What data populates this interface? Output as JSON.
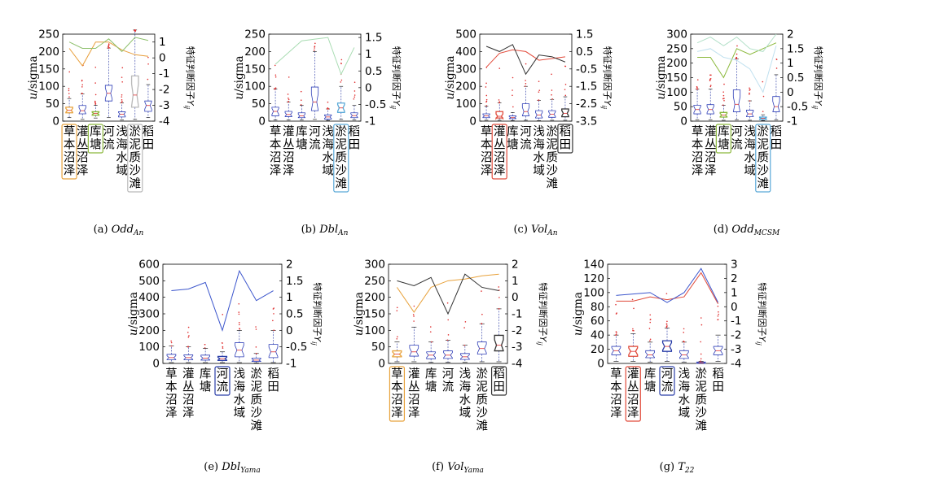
{
  "categories": [
    "草本沼泽",
    "灌丛沼泽",
    "库塘",
    "河流",
    "浅海水域",
    "淤泥质沙滩",
    "稻田"
  ],
  "ylabel": "u/sigma",
  "y2label": "特征判断因子Y_ij",
  "chart_data": [
    {
      "type": "box",
      "caption": "(a) Odd_An",
      "ylim": [
        0,
        250
      ],
      "yticks": [
        0,
        50,
        100,
        150,
        200,
        250
      ],
      "y2lim": [
        -4,
        1.5
      ],
      "y2ticks": [
        -4,
        -3,
        -2,
        -1,
        0,
        1
      ],
      "boxes": [
        {
          "q1": 24,
          "med": 31,
          "q3": 40,
          "lo": 10,
          "hi": 65
        },
        {
          "q1": 21,
          "med": 30,
          "q3": 45,
          "lo": 5,
          "hi": 78
        },
        {
          "q1": 17,
          "med": 22,
          "q3": 27,
          "lo": 9,
          "hi": 46
        },
        {
          "q1": 58,
          "med": 80,
          "q3": 103,
          "lo": 10,
          "hi": 210
        },
        {
          "q1": 12,
          "med": 20,
          "q3": 27,
          "lo": 3,
          "hi": 52
        },
        {
          "q1": 40,
          "med": 75,
          "q3": 130,
          "lo": 5,
          "hi": 262
        },
        {
          "q1": 28,
          "med": 45,
          "q3": 58,
          "lo": 10,
          "hi": 105
        }
      ],
      "highlights": [
        {
          "index": 0,
          "color": "#e8a23c"
        },
        {
          "index": 2,
          "color": "#8ab83a"
        },
        {
          "index": 5,
          "color": "#b9b9b9"
        }
      ],
      "series": [
        {
          "color": "#e89e3a",
          "values": [
            0.6,
            -0.5,
            1.0,
            1.0,
            0.5,
            0.2,
            0.1
          ]
        },
        {
          "color": "#8ec06c",
          "values": [
            1.0,
            0.6,
            0.6,
            1.2,
            0.4,
            1.3,
            1.1
          ]
        }
      ]
    },
    {
      "type": "box",
      "caption": "(b) Dbl_An",
      "ylim": [
        0,
        250
      ],
      "yticks": [
        0,
        50,
        100,
        150,
        200,
        250
      ],
      "y2lim": [
        -1.0,
        1.6
      ],
      "y2ticks": [
        -1.0,
        -0.5,
        0,
        0.5,
        1.0,
        1.5
      ],
      "boxes": [
        {
          "q1": 15,
          "med": 28,
          "q3": 40,
          "lo": 3,
          "hi": 92
        },
        {
          "q1": 13,
          "med": 19,
          "q3": 28,
          "lo": 3,
          "hi": 55
        },
        {
          "q1": 10,
          "med": 15,
          "q3": 24,
          "lo": 3,
          "hi": 45
        },
        {
          "q1": 30,
          "med": 55,
          "q3": 98,
          "lo": 5,
          "hi": 200
        },
        {
          "q1": 6,
          "med": 12,
          "q3": 18,
          "lo": 2,
          "hi": 35
        },
        {
          "q1": 25,
          "med": 38,
          "q3": 52,
          "lo": 5,
          "hi": 100
        },
        {
          "q1": 10,
          "med": 16,
          "q3": 24,
          "lo": 3,
          "hi": 45
        }
      ],
      "highlights": [
        {
          "index": 5,
          "color": "#5aa9d8"
        }
      ],
      "series": [
        {
          "color": "#a8dcb2",
          "values": [
            0.7,
            1.05,
            1.4,
            1.45,
            1.5,
            0.4,
            1.2
          ]
        }
      ]
    },
    {
      "type": "box",
      "caption": "(c) Vol_An",
      "ylim": [
        0,
        500
      ],
      "yticks": [
        0,
        100,
        200,
        300,
        400,
        500
      ],
      "y2lim": [
        -3.5,
        1.5
      ],
      "y2ticks": [
        -3.5,
        -2.5,
        -1.5,
        -0.5,
        0.5,
        1.5
      ],
      "boxes": [
        {
          "q1": 20,
          "med": 30,
          "q3": 42,
          "lo": 5,
          "hi": 85
        },
        {
          "q1": 18,
          "med": 28,
          "q3": 55,
          "lo": 5,
          "hi": 105
        },
        {
          "q1": 14,
          "med": 20,
          "q3": 30,
          "lo": 3,
          "hi": 50
        },
        {
          "q1": 30,
          "med": 55,
          "q3": 100,
          "lo": 5,
          "hi": 200
        },
        {
          "q1": 18,
          "med": 35,
          "q3": 60,
          "lo": 3,
          "hi": 120
        },
        {
          "q1": 22,
          "med": 40,
          "q3": 60,
          "lo": 5,
          "hi": 125
        },
        {
          "q1": 25,
          "med": 45,
          "q3": 70,
          "lo": 5,
          "hi": 140
        }
      ],
      "highlights": [
        {
          "index": 1,
          "color": "#e04a3a"
        },
        {
          "index": 6,
          "color": "#333333"
        }
      ],
      "series": [
        {
          "color": "#e24a3a",
          "values": [
            -0.4,
            0.4,
            0.6,
            0.5,
            0.0,
            0.1,
            0.2
          ]
        },
        {
          "color": "#333333",
          "values": [
            0.8,
            0.5,
            0.9,
            -0.8,
            0.3,
            0.2,
            -0.1
          ]
        }
      ]
    },
    {
      "type": "box",
      "caption": "(d) Odd_MCSM",
      "ylim": [
        0,
        300
      ],
      "yticks": [
        0,
        50,
        100,
        150,
        200,
        250,
        300
      ],
      "y2lim": [
        -1.0,
        2.0
      ],
      "y2ticks": [
        -1.0,
        -0.5,
        0,
        0.5,
        1.0,
        1.5,
        2.0
      ],
      "boxes": [
        {
          "q1": 25,
          "med": 40,
          "q3": 55,
          "lo": 5,
          "hi": 110
        },
        {
          "q1": 25,
          "med": 40,
          "q3": 57,
          "lo": 5,
          "hi": 110
        },
        {
          "q1": 14,
          "med": 21,
          "q3": 30,
          "lo": 3,
          "hi": 55
        },
        {
          "q1": 32,
          "med": 58,
          "q3": 108,
          "lo": 5,
          "hi": 215
        },
        {
          "q1": 15,
          "med": 25,
          "q3": 38,
          "lo": 3,
          "hi": 70
        },
        {
          "q1": 6,
          "med": 10,
          "q3": 14,
          "lo": 2,
          "hi": 22
        },
        {
          "q1": 32,
          "med": 50,
          "q3": 85,
          "lo": 5,
          "hi": 160
        }
      ],
      "highlights": [
        {
          "index": 2,
          "color": "#8ab83a"
        },
        {
          "index": 5,
          "color": "#5aa9d8"
        }
      ],
      "series": [
        {
          "color": "#8ab83a",
          "values": [
            1.2,
            1.2,
            0.5,
            1.5,
            1.3,
            1.5,
            1.7
          ]
        },
        {
          "color": "#b2e0c8",
          "values": [
            1.7,
            1.9,
            1.6,
            1.9,
            1.5,
            1.4,
            2.0
          ]
        },
        {
          "color": "#bfe0ef",
          "values": [
            1.4,
            1.5,
            1.2,
            1.1,
            0.8,
            0.0,
            1.6
          ]
        }
      ]
    },
    {
      "type": "box",
      "caption": "(e) Dbl_Yama",
      "ylim": [
        0,
        600
      ],
      "yticks": [
        0,
        100,
        200,
        300,
        400,
        500,
        600
      ],
      "y2lim": [
        -1.0,
        2.0
      ],
      "y2ticks": [
        -1.0,
        -0.5,
        0,
        0.5,
        1.0,
        1.5,
        2.0
      ],
      "boxes": [
        {
          "q1": 22,
          "med": 35,
          "q3": 55,
          "lo": 5,
          "hi": 105
        },
        {
          "q1": 22,
          "med": 35,
          "q3": 52,
          "lo": 5,
          "hi": 100
        },
        {
          "q1": 20,
          "med": 32,
          "q3": 50,
          "lo": 5,
          "hi": 90
        },
        {
          "q1": 18,
          "med": 28,
          "q3": 42,
          "lo": 5,
          "hi": 70
        },
        {
          "q1": 40,
          "med": 80,
          "q3": 125,
          "lo": 5,
          "hi": 200
        },
        {
          "q1": 12,
          "med": 20,
          "q3": 32,
          "lo": 3,
          "hi": 60
        },
        {
          "q1": 35,
          "med": 70,
          "q3": 115,
          "lo": 5,
          "hi": 200
        }
      ],
      "highlights": [
        {
          "index": 3,
          "color": "#2a3ea8"
        }
      ],
      "series": [
        {
          "color": "#3b55cc",
          "values": [
            1.2,
            1.25,
            1.45,
            0.0,
            1.8,
            0.9,
            1.2
          ]
        }
      ]
    },
    {
      "type": "box",
      "caption": "(f) Vol_Yama",
      "ylim": [
        0,
        300
      ],
      "yticks": [
        0,
        50,
        100,
        150,
        200,
        250,
        300
      ],
      "y2lim": [
        -4,
        2
      ],
      "y2ticks": [
        -4,
        -3,
        -2,
        -1,
        0,
        1,
        2
      ],
      "boxes": [
        {
          "q1": 20,
          "med": 28,
          "q3": 38,
          "lo": 5,
          "hi": 65
        },
        {
          "q1": 22,
          "med": 35,
          "q3": 55,
          "lo": 5,
          "hi": 110
        },
        {
          "q1": 14,
          "med": 25,
          "q3": 35,
          "lo": 3,
          "hi": 65
        },
        {
          "q1": 15,
          "med": 25,
          "q3": 38,
          "lo": 3,
          "hi": 70
        },
        {
          "q1": 12,
          "med": 20,
          "q3": 30,
          "lo": 3,
          "hi": 55
        },
        {
          "q1": 28,
          "med": 45,
          "q3": 65,
          "lo": 5,
          "hi": 120
        },
        {
          "q1": 38,
          "med": 55,
          "q3": 85,
          "lo": 5,
          "hi": 165
        }
      ],
      "highlights": [
        {
          "index": 0,
          "color": "#e8a23c"
        },
        {
          "index": 6,
          "color": "#333333"
        }
      ],
      "series": [
        {
          "color": "#e8a23c",
          "values": [
            0.6,
            -0.9,
            0.6,
            1.0,
            1.1,
            1.3,
            1.4
          ]
        },
        {
          "color": "#333333",
          "values": [
            1.0,
            0.7,
            1.2,
            -1.0,
            1.4,
            0.6,
            0.4
          ]
        }
      ]
    },
    {
      "type": "box",
      "caption": "(g) T_22",
      "ylim": [
        0,
        140
      ],
      "yticks": [
        0,
        20,
        40,
        60,
        80,
        100,
        120,
        140
      ],
      "y2lim": [
        -4,
        3
      ],
      "y2ticks": [
        -4,
        -3,
        -2,
        -1,
        0,
        1,
        2,
        3
      ],
      "boxes": [
        {
          "q1": 12,
          "med": 18,
          "q3": 24,
          "lo": 3,
          "hi": 40
        },
        {
          "q1": 10,
          "med": 17,
          "q3": 24,
          "lo": 3,
          "hi": 42
        },
        {
          "q1": 8,
          "med": 12,
          "q3": 18,
          "lo": 2,
          "hi": 30
        },
        {
          "q1": 17,
          "med": 24,
          "q3": 32,
          "lo": 3,
          "hi": 50
        },
        {
          "q1": 7,
          "med": 12,
          "q3": 18,
          "lo": 2,
          "hi": 30
        },
        {
          "q1": 0,
          "med": 1,
          "q3": 2,
          "lo": 0,
          "hi": 3
        },
        {
          "q1": 12,
          "med": 18,
          "q3": 24,
          "lo": 3,
          "hi": 40
        }
      ],
      "highlights": [
        {
          "index": 1,
          "color": "#e04a3a"
        },
        {
          "index": 3,
          "color": "#2a3ea8"
        }
      ],
      "series": [
        {
          "color": "#e04a3a",
          "values": [
            0.4,
            0.4,
            0.7,
            0.5,
            0.7,
            2.4,
            0.2
          ]
        },
        {
          "color": "#3b55cc",
          "values": [
            0.8,
            0.9,
            1.0,
            0.3,
            1.0,
            2.7,
            0.3
          ]
        }
      ]
    }
  ]
}
